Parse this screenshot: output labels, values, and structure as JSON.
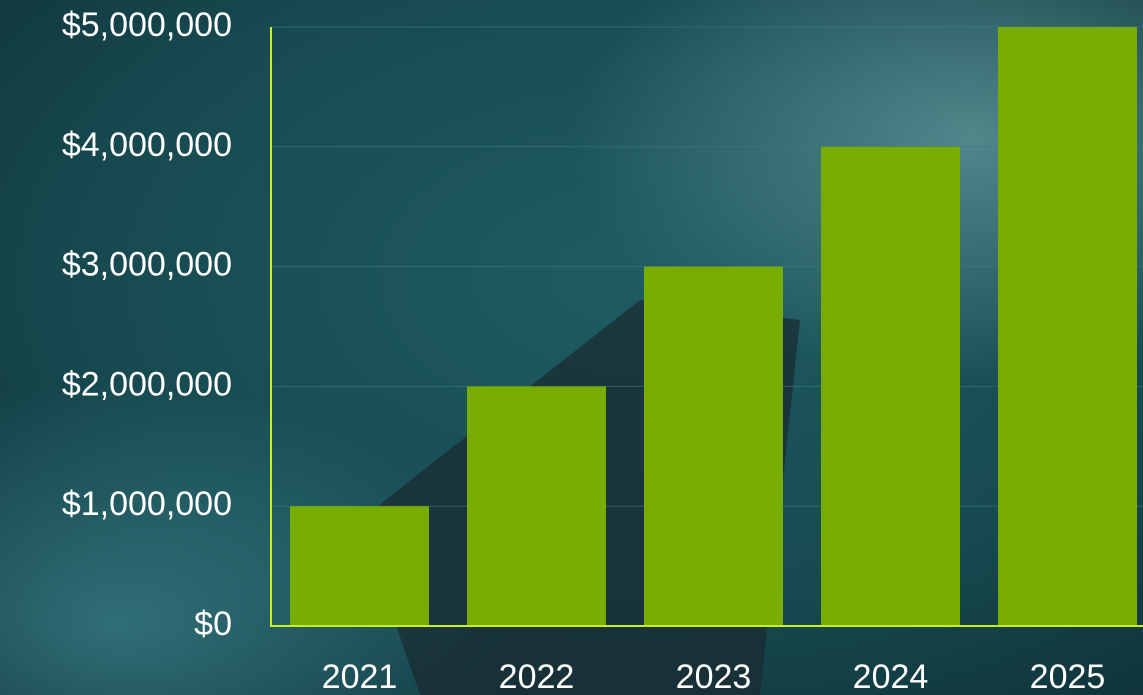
{
  "chart_data": {
    "type": "bar",
    "categories": [
      "2021",
      "2022",
      "2023",
      "2024",
      "2025"
    ],
    "values": [
      1000000,
      2000000,
      3000000,
      4000000,
      5000000
    ],
    "color": "#78ad00",
    "ylim": [
      0,
      5000000
    ],
    "yticks": [
      {
        "value": 0,
        "label": "$0"
      },
      {
        "value": 1000000,
        "label": "$1,000,000"
      },
      {
        "value": 2000000,
        "label": "$2,000,000"
      },
      {
        "value": 3000000,
        "label": "$3,000,000"
      },
      {
        "value": 4000000,
        "label": "$4,000,000"
      },
      {
        "value": 5000000,
        "label": "$5,000,000"
      }
    ],
    "grid": true
  }
}
